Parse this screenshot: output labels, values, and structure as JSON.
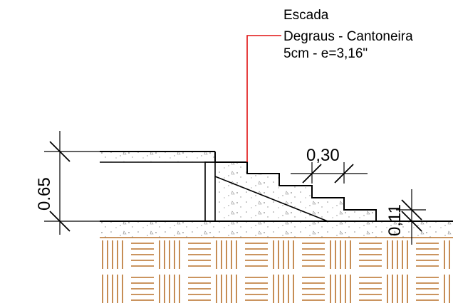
{
  "annotation": {
    "line1": "Escada",
    "line2": "Degraus - Cantoneira",
    "line3": "5cm - e=3,16\""
  },
  "dimensions": {
    "height_total": "0.65",
    "tread": "0,30",
    "riser": "0,11"
  },
  "colors": {
    "leader": "#e01010",
    "line": "#000000",
    "soil": "#b8702a",
    "concrete_speckle": "#8a8a8a"
  }
}
